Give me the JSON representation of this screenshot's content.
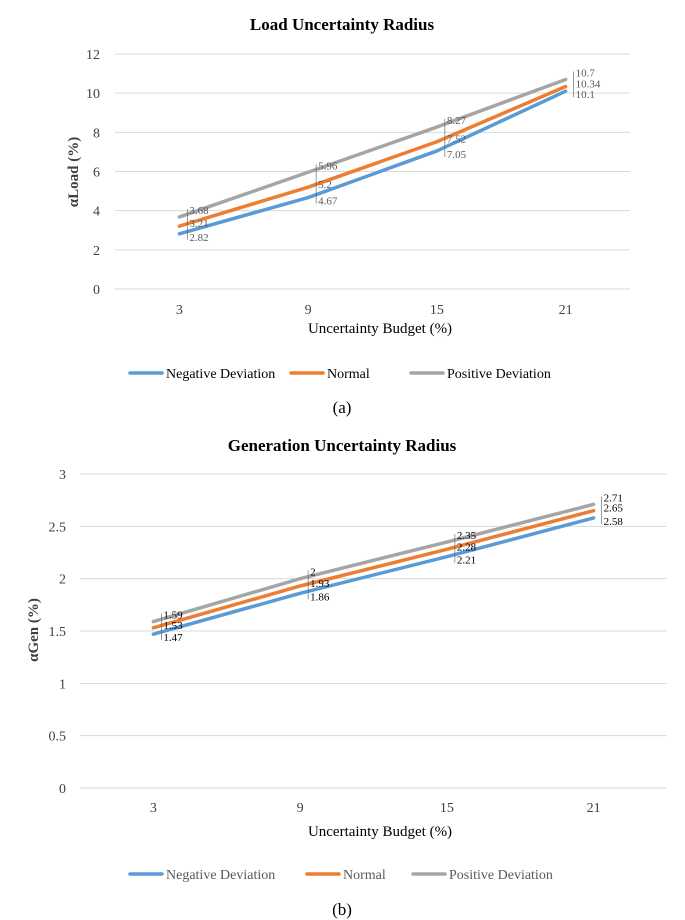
{
  "colors": {
    "negative": "#5B9BD5",
    "normal": "#ED7D31",
    "positive": "#A5A5A5",
    "grid": "#D9D9D9"
  },
  "chart_data": [
    {
      "type": "line",
      "title": "Load Uncertainty Radius",
      "xlabel": "Uncertainty Budget (%)",
      "ylabel": "αLoad (%)",
      "caption": "(a)",
      "categories": [
        "3",
        "9",
        "15",
        "21"
      ],
      "yticks": [
        "0",
        "2",
        "4",
        "6",
        "8",
        "10",
        "12"
      ],
      "ylim": [
        0,
        12
      ],
      "legend": "bottom",
      "series": [
        {
          "name": "Negative Deviation",
          "key": "negative",
          "values": [
            2.82,
            4.67,
            7.05,
            10.1
          ],
          "labels": [
            "2.82",
            "4.67",
            "7.05",
            "10.1"
          ]
        },
        {
          "name": "Normal",
          "key": "normal",
          "values": [
            3.21,
            5.2,
            7.52,
            10.34
          ],
          "labels": [
            "3.21",
            "5.2",
            "7.52",
            "10.34"
          ]
        },
        {
          "name": "Positive Deviation",
          "key": "positive",
          "values": [
            3.68,
            5.96,
            8.27,
            10.7
          ],
          "labels": [
            "3.68",
            "5.96",
            "8.27",
            "10.7"
          ]
        }
      ]
    },
    {
      "type": "line",
      "title": "Generation Uncertainty Radius",
      "xlabel": "Uncertainty Budget (%)",
      "ylabel": "αGen (%)",
      "caption": "(b)",
      "categories": [
        "3",
        "9",
        "15",
        "21"
      ],
      "yticks": [
        "0",
        "0.5",
        "1",
        "1.5",
        "2",
        "2.5",
        "3"
      ],
      "ylim": [
        0,
        3
      ],
      "legend": "bottom",
      "series": [
        {
          "name": "Negative Deviation",
          "key": "negative",
          "values": [
            1.47,
            1.86,
            2.21,
            2.58
          ],
          "labels": [
            "1.47",
            "1.86",
            "2.21",
            "2.58"
          ]
        },
        {
          "name": "Normal",
          "key": "normal",
          "values": [
            1.53,
            1.93,
            2.28,
            2.65
          ],
          "labels": [
            "1.53",
            "1.93",
            "2.28",
            "2.65"
          ]
        },
        {
          "name": "Positive Deviation",
          "key": "positive",
          "values": [
            1.59,
            2,
            2.35,
            2.71
          ],
          "labels": [
            "1.59",
            "2",
            "2.35",
            "2.71"
          ]
        }
      ]
    }
  ]
}
